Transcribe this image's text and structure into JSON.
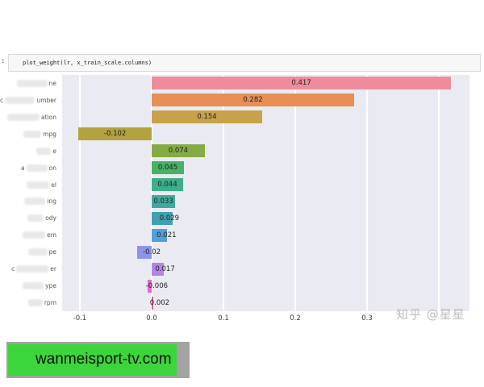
{
  "code_cell": {
    "prompt": ":",
    "code": "plot_weight(lr, x_train_scale.columns)"
  },
  "watermark": {
    "text": "知乎 @星星"
  },
  "banner": {
    "text": "wanmeisport-tv.com",
    "green_color": "#3cd63c",
    "frame_color": "#a3a3a3"
  },
  "chart_data": {
    "type": "bar",
    "orientation": "horizontal",
    "title": "",
    "xlabel": "",
    "ylabel": "",
    "plot_bg": "#eaeaf2",
    "grid": "vertical white gridlines on",
    "legend": "none",
    "xlim": [
      -0.125,
      0.443
    ],
    "xtick_labels": [
      "-0.1",
      "0.0",
      "0.1",
      "0.2",
      "0.3"
    ],
    "xticks": [
      -0.1,
      0.0,
      0.1,
      0.2,
      0.3
    ],
    "gridline_values": [
      -0.1,
      0.0,
      0.1,
      0.2,
      0.3,
      0.4
    ],
    "note": "y-axis category labels are blurred/censored; only end fragments visible",
    "bars": [
      {
        "label_prefix": "",
        "label_suffix": "ne",
        "value": 0.417,
        "value_label": "0.417",
        "color": "#ee8c9d"
      },
      {
        "label_prefix": "c",
        "label_suffix": "umber",
        "value": 0.282,
        "value_label": "0.282",
        "color": "#e78f55"
      },
      {
        "label_prefix": "",
        "label_suffix": "ation",
        "value": 0.154,
        "value_label": "0.154",
        "color": "#c7a24b"
      },
      {
        "label_prefix": "",
        "label_suffix": "mpg",
        "value": -0.102,
        "value_label": "-0.102",
        "color": "#b3a23e"
      },
      {
        "label_prefix": "",
        "label_suffix": "e",
        "value": 0.074,
        "value_label": "0.074",
        "color": "#85ac43"
      },
      {
        "label_prefix": "a",
        "label_suffix": "on",
        "value": 0.045,
        "value_label": "0.045",
        "color": "#45b266"
      },
      {
        "label_prefix": "",
        "label_suffix": "el",
        "value": 0.044,
        "value_label": "0.044",
        "color": "#3cae89"
      },
      {
        "label_prefix": "",
        "label_suffix": "ing",
        "value": 0.033,
        "value_label": "0.033",
        "color": "#3cab9d"
      },
      {
        "label_prefix": "",
        "label_suffix": "ody",
        "value": 0.029,
        "value_label": "0.029",
        "color": "#429fb0"
      },
      {
        "label_prefix": "",
        "label_suffix": "em",
        "value": 0.021,
        "value_label": "0.021",
        "color": "#539fd7"
      },
      {
        "label_prefix": "",
        "label_suffix": "pe",
        "value": -0.02,
        "value_label": "-0.02",
        "color": "#8c95ea"
      },
      {
        "label_prefix": "c",
        "label_suffix": "er",
        "value": 0.017,
        "value_label": "0.017",
        "color": "#b583e8"
      },
      {
        "label_prefix": "",
        "label_suffix": "ype",
        "value": -0.006,
        "value_label": "-0.006",
        "color": "#e468cf"
      },
      {
        "label_prefix": "",
        "label_suffix": "rpm",
        "value": 0.002,
        "value_label": "0.002",
        "color": "#ef5a85"
      }
    ]
  }
}
